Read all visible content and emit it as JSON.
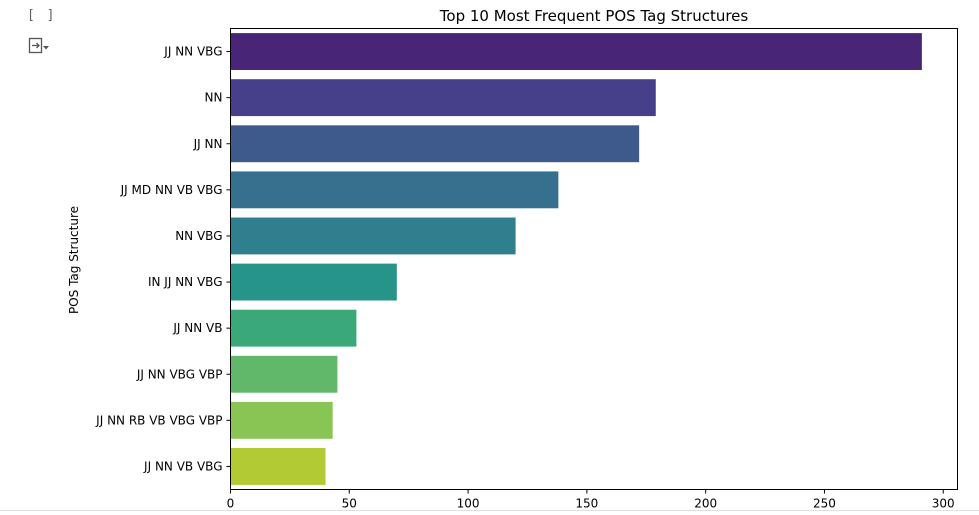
{
  "cell": {
    "run_bracket": "[ ]",
    "output_icon": "output-toggle-icon"
  },
  "chart_data": {
    "type": "bar",
    "orientation": "horizontal",
    "title": "Top 10 Most Frequent POS Tag Structures",
    "xlabel": "",
    "ylabel": "POS Tag Structure",
    "xlim": [
      0,
      306
    ],
    "xticks": [
      0,
      50,
      100,
      150,
      200,
      250,
      300
    ],
    "grid": false,
    "legend": "none",
    "categories": [
      "JJ NN VBG",
      "NN",
      "JJ NN",
      "JJ MD NN VB VBG",
      "NN VBG",
      "IN JJ NN VBG",
      "JJ NN VB",
      "JJ NN VBG VBP",
      "JJ NN RB VB VBG VBP",
      "JJ NN VB VBG"
    ],
    "values": [
      291,
      179,
      172,
      138,
      120,
      70,
      53,
      45,
      43,
      40
    ],
    "colors": [
      "#482576",
      "#46408a",
      "#3e5a8c",
      "#35708e",
      "#2f7f8e",
      "#27948a",
      "#3aa879",
      "#61b86b",
      "#88c555",
      "#b2ca34"
    ]
  }
}
